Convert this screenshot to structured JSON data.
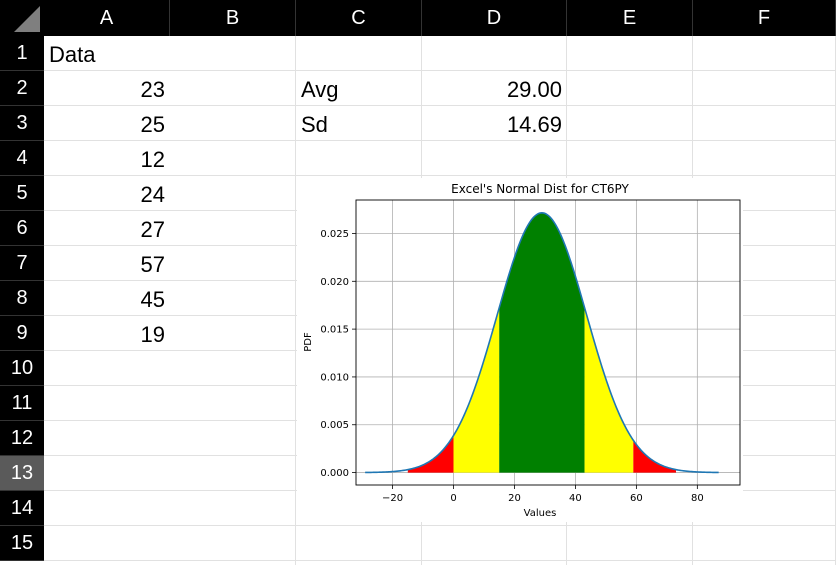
{
  "columns": [
    "A",
    "B",
    "C",
    "D",
    "E",
    "F"
  ],
  "rows": [
    "1",
    "2",
    "3",
    "4",
    "5",
    "6",
    "7",
    "8",
    "9",
    "10",
    "11",
    "12",
    "13",
    "14",
    "15"
  ],
  "selected_row": "13",
  "cells": {
    "A1": "Data",
    "A2": "23",
    "A3": "25",
    "A4": "12",
    "A5": "24",
    "A6": "27",
    "A7": "57",
    "A8": "45",
    "A9": "19",
    "C2": "Avg",
    "D2": "29.00",
    "C3": "Sd",
    "D3": "14.69"
  },
  "chart_data": {
    "type": "area",
    "title": "Excel's Normal Dist for CT6PY",
    "xlabel": "Values",
    "ylabel": "PDF",
    "mean": 29.0,
    "sd": 14.69,
    "xlim": [
      -32,
      94
    ],
    "ylim": [
      -0.0013,
      0.0285
    ],
    "x_ticks": [
      -20,
      0,
      20,
      40,
      60,
      80
    ],
    "x_tick_labels": [
      "−20",
      "0",
      "20",
      "40",
      "60",
      "80"
    ],
    "y_ticks": [
      0.0,
      0.005,
      0.01,
      0.015,
      0.02,
      0.025
    ],
    "y_tick_labels": [
      "0.000",
      "0.005",
      "0.010",
      "0.015",
      "0.020",
      "0.025"
    ],
    "curve_range": [
      -29,
      87
    ],
    "grid": true,
    "regions": [
      {
        "from": -15,
        "to": 0,
        "color": "#ff0000"
      },
      {
        "from": 0,
        "to": 15,
        "color": "#ffff00"
      },
      {
        "from": 15,
        "to": 43,
        "color": "#008000"
      },
      {
        "from": 43,
        "to": 59,
        "color": "#ffff00"
      },
      {
        "from": 59,
        "to": 73,
        "color": "#ff0000"
      }
    ],
    "line_color": "#1f77b4"
  }
}
